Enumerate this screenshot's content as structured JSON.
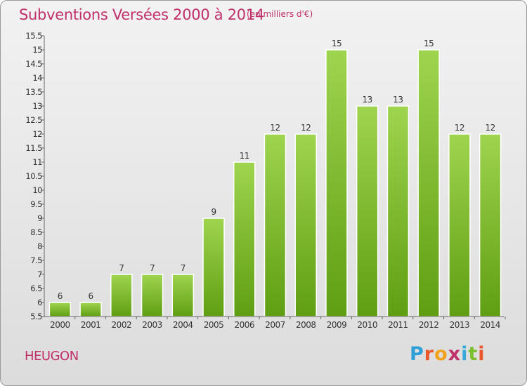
{
  "header": {
    "title": "Subventions Versées 2000 à 2014",
    "unit": "(en milliers d'€)"
  },
  "footer": {
    "commune": "HEUGON",
    "logo_text": "Proxiti",
    "logo_colors": [
      "#2f9fd8",
      "#e9572a",
      "#f2a21c",
      "#c0306a",
      "#3aa8db",
      "#7bbf2c",
      "#e9572a"
    ]
  },
  "colors": {
    "bar_light": "#9fd44f",
    "bar_dark": "#5f9e12",
    "title": "#c0306a",
    "axis_text": "#333333"
  },
  "chart_data": {
    "type": "bar",
    "title": "Subventions Versées 2000 à 2014",
    "subtitle": "(en milliers d'€)",
    "xlabel": "",
    "ylabel": "",
    "categories": [
      "2000",
      "2001",
      "2002",
      "2003",
      "2004",
      "2005",
      "2006",
      "2007",
      "2008",
      "2009",
      "2010",
      "2011",
      "2012",
      "2013",
      "2014"
    ],
    "values": [
      6,
      6,
      7,
      7,
      7,
      9,
      11,
      12,
      12,
      15,
      13,
      13,
      15,
      12,
      12
    ],
    "data_labels": [
      "6",
      "6",
      "7",
      "7",
      "7",
      "9",
      "11",
      "12",
      "12",
      "15",
      "13",
      "13",
      "15",
      "12",
      "12"
    ],
    "ylim": [
      5.5,
      15.5
    ],
    "yticks": [
      "5.5",
      "6",
      "6.5",
      "7",
      "7.5",
      "8",
      "8.5",
      "9",
      "9.5",
      "10",
      "10.5",
      "11",
      "11.5",
      "12",
      "12.5",
      "13",
      "13.5",
      "14",
      "14.5",
      "15",
      "15.5"
    ],
    "grid": false,
    "legend": "none"
  }
}
